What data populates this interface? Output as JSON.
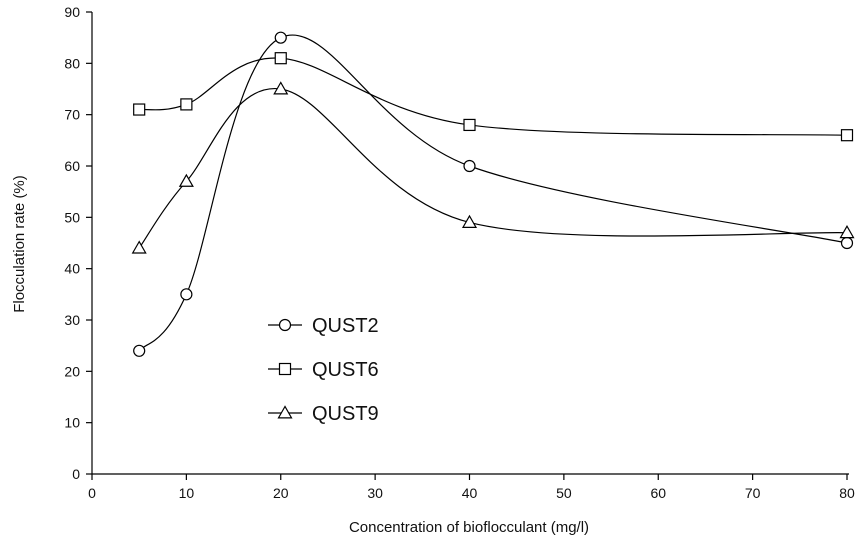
{
  "chart_data": {
    "type": "line",
    "title": "",
    "xlabel": "Concentration of bioflocculant (mg/l)",
    "ylabel": "Flocculation rate (%)",
    "xlim": [
      0,
      80
    ],
    "ylim": [
      0,
      90
    ],
    "xticks": [
      0,
      10,
      20,
      30,
      40,
      50,
      60,
      70,
      80
    ],
    "yticks": [
      0,
      10,
      20,
      30,
      40,
      50,
      60,
      70,
      80,
      90
    ],
    "x": [
      5,
      10,
      20,
      40,
      80
    ],
    "grid": false,
    "legend_position": "center-left",
    "series": [
      {
        "name": "QUST2",
        "marker": "circle",
        "values": [
          24,
          35,
          85,
          60,
          45
        ]
      },
      {
        "name": "QUST6",
        "marker": "square",
        "values": [
          71,
          72,
          81,
          68,
          66
        ]
      },
      {
        "name": "QUST9",
        "marker": "triangle",
        "values": [
          44,
          57,
          75,
          49,
          47
        ]
      }
    ]
  }
}
